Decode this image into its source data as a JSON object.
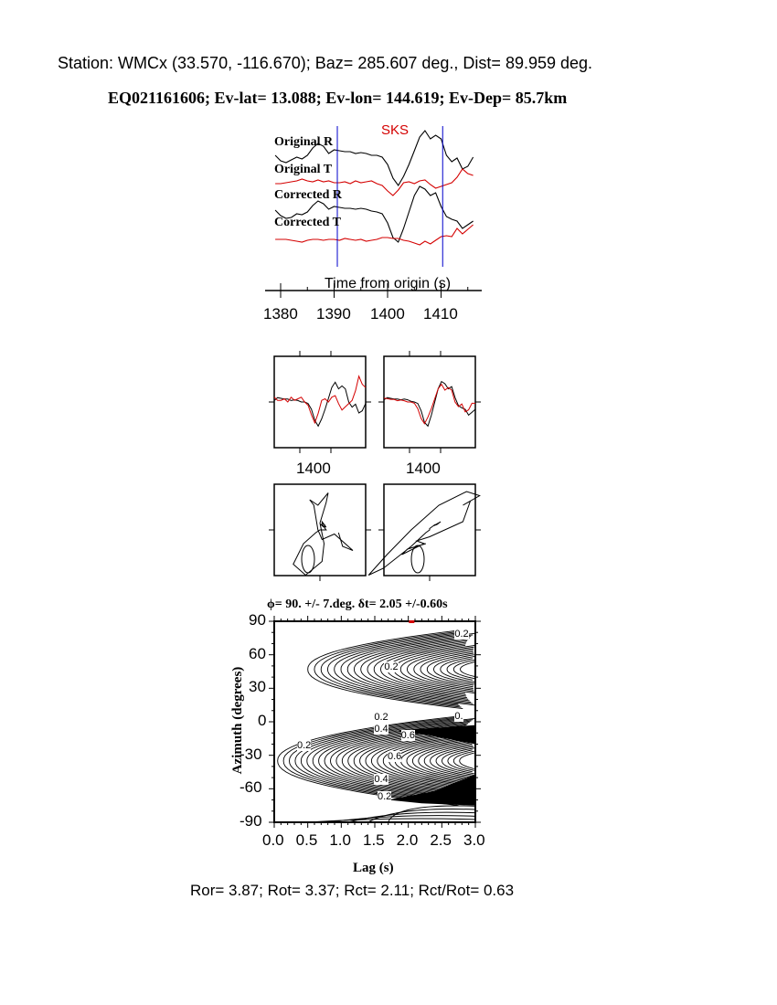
{
  "header": {
    "station_line": "Station: WMCx (33.570, -116.670); Baz=  285.607 deg., Dist=   89.959 deg.",
    "event_line": "EQ021161606; Ev-lat=  13.088; Ev-lon= 144.619; Ev-Dep= 85.7km"
  },
  "colors": {
    "black": "#000000",
    "red": "#d40000",
    "window_marker": "#0000cc"
  },
  "chart_data": [
    {
      "type": "line",
      "name_label": "traces",
      "phase_label": "SKS",
      "xlabel": "Time from origin (s)",
      "xticks": [
        1380,
        1390,
        1400,
        1410
      ],
      "xlim": [
        1379,
        1416
      ],
      "window": [
        1390.6,
        1410.3
      ],
      "x": [
        1379,
        1380,
        1381,
        1382,
        1383,
        1384,
        1385,
        1386,
        1387,
        1388,
        1389,
        1390,
        1391,
        1392,
        1393,
        1394,
        1395,
        1396,
        1397,
        1398,
        1399,
        1400,
        1401,
        1402,
        1403,
        1404,
        1405,
        1406,
        1407,
        1408,
        1409,
        1410,
        1411,
        1412,
        1413,
        1414,
        1415,
        1416
      ],
      "series": [
        {
          "name": "Original R",
          "color": "#000000",
          "values": [
            0,
            -0.3,
            -0.4,
            -0.25,
            -0.1,
            -0.2,
            0,
            0.4,
            0.65,
            0.5,
            0.1,
            0.3,
            0.25,
            0.2,
            0.2,
            0.1,
            0.15,
            0.1,
            0,
            0,
            -0.1,
            -0.5,
            -1.25,
            -1.65,
            -1.15,
            -0.5,
            0.25,
            1,
            1.35,
            0.9,
            1.1,
            0.9,
            0,
            -0.35,
            -0.15,
            -0.75,
            -0.6,
            -0.1
          ]
        },
        {
          "name": "Original T",
          "color": "#d40000",
          "values": [
            0,
            0,
            0.05,
            0.1,
            0.15,
            0.25,
            0.15,
            0.1,
            0.2,
            0.1,
            0.15,
            0.05,
            0.05,
            0.1,
            0,
            0.15,
            0.05,
            0.1,
            0.15,
            0,
            -0.1,
            -0.4,
            -0.65,
            -0.35,
            0.05,
            0.1,
            0,
            0.15,
            0.2,
            -0.05,
            -0.25,
            -0.15,
            -0.05,
            0.05,
            0.35,
            0.8,
            0.55,
            0.45
          ]
        },
        {
          "name": "Corrected R",
          "color": "#000000",
          "values": [
            0.1,
            -0.2,
            -0.35,
            -0.3,
            -0.1,
            -0.15,
            0,
            0.35,
            0.6,
            0.45,
            0.15,
            0.3,
            0.25,
            0.2,
            0.2,
            0.15,
            0.2,
            0.15,
            0.05,
            0,
            -0.1,
            -0.6,
            -1.4,
            -1.65,
            -0.9,
            0,
            0.9,
            1.4,
            1.25,
            0.9,
            1.05,
            0.3,
            -0.25,
            -0.4,
            -0.5,
            -0.9,
            -0.7,
            -0.5
          ]
        },
        {
          "name": "Corrected T",
          "color": "#d40000",
          "values": [
            0,
            0,
            0,
            -0.05,
            -0.1,
            -0.15,
            -0.05,
            0,
            0,
            -0.05,
            0,
            0,
            -0.05,
            0.05,
            0,
            -0.05,
            0,
            -0.1,
            -0.05,
            0,
            0.1,
            0.1,
            0.05,
            0.05,
            -0.05,
            -0.1,
            -0.2,
            -0.3,
            -0.1,
            -0.25,
            -0.05,
            0.15,
            0.2,
            0.15,
            0.6,
            0.3,
            0.55,
            0.8
          ]
        }
      ]
    },
    {
      "type": "line",
      "name_label": "waveform-comparison",
      "xticks": [
        1400,
        1400
      ]
    },
    {
      "type": "contour",
      "title": "ϕ= 90. +/- 7.deg. δt= 2.05 +/-0.60s",
      "xlabel": "Lag (s)",
      "ylabel": "Azimuth (degrees)",
      "xlim": [
        0,
        3
      ],
      "ylim": [
        -90,
        90
      ],
      "xticks": [
        "0.0",
        "0.5",
        "1.0",
        "1.5",
        "2.0",
        "2.5",
        "3.0"
      ],
      "yticks": [
        "90",
        "60",
        "30",
        "0",
        "-30",
        "-60",
        "-90"
      ],
      "contour_labels": [
        "0.2",
        "0.2",
        "0.2",
        "0.",
        "0.4",
        "0.6",
        "0.2",
        "0.6",
        "0.4",
        "0.2"
      ],
      "best": {
        "lag": 2.05,
        "azimuth": 90
      }
    }
  ],
  "footer": {
    "ratios": "Ror= 3.87; Rot= 3.37; Rct= 2.11; Rct/Rot= 0.63"
  }
}
